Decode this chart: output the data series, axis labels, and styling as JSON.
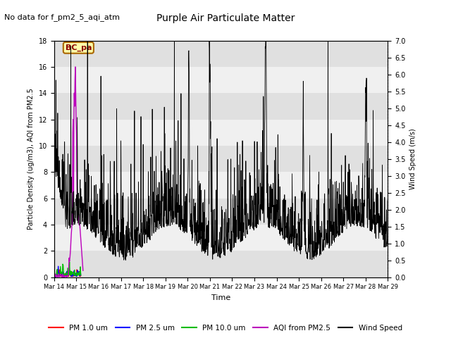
{
  "title": "Purple Air Particulate Matter",
  "subtitle": "No data for f_pm2_5_aqi_atm",
  "station_label": "BC_pa",
  "xlabel": "Time",
  "ylabel_left": "Particle Density (ug/m3), AQI from PM2.5",
  "ylabel_right": "Wind Speed (m/s)",
  "ylim_left": [
    0,
    18
  ],
  "ylim_right": [
    0,
    7.0
  ],
  "yticks_left": [
    0,
    2,
    4,
    6,
    8,
    10,
    12,
    14,
    16,
    18
  ],
  "yticks_right": [
    0.0,
    0.5,
    1.0,
    1.5,
    2.0,
    2.5,
    3.0,
    3.5,
    4.0,
    4.5,
    5.0,
    5.5,
    6.0,
    6.5,
    7.0
  ],
  "xtick_labels": [
    "Mar 14",
    "Mar 15",
    "Mar 16",
    "Mar 17",
    "Mar 18",
    "Mar 19",
    "Mar 20",
    "Mar 21",
    "Mar 22",
    "Mar 23",
    "Mar 24",
    "Mar 25",
    "Mar 26",
    "Mar 27",
    "Mar 28",
    "Mar 29"
  ],
  "colors": {
    "pm1": "#ff0000",
    "pm25": "#0000ff",
    "pm10": "#00bb00",
    "aqi": "#bb00bb",
    "wind": "#000000",
    "bg_band1": "#e0e0e0",
    "bg_band2": "#f0f0f0",
    "station_box_bg": "#ffffaa",
    "station_box_border": "#aa6600"
  },
  "legend_entries": [
    "PM 1.0 um",
    "PM 2.5 um",
    "PM 10.0 um",
    "AQI from PM2.5",
    "Wind Speed"
  ],
  "legend_colors": [
    "#ff0000",
    "#0000ff",
    "#00bb00",
    "#bb00bb",
    "#000000"
  ]
}
